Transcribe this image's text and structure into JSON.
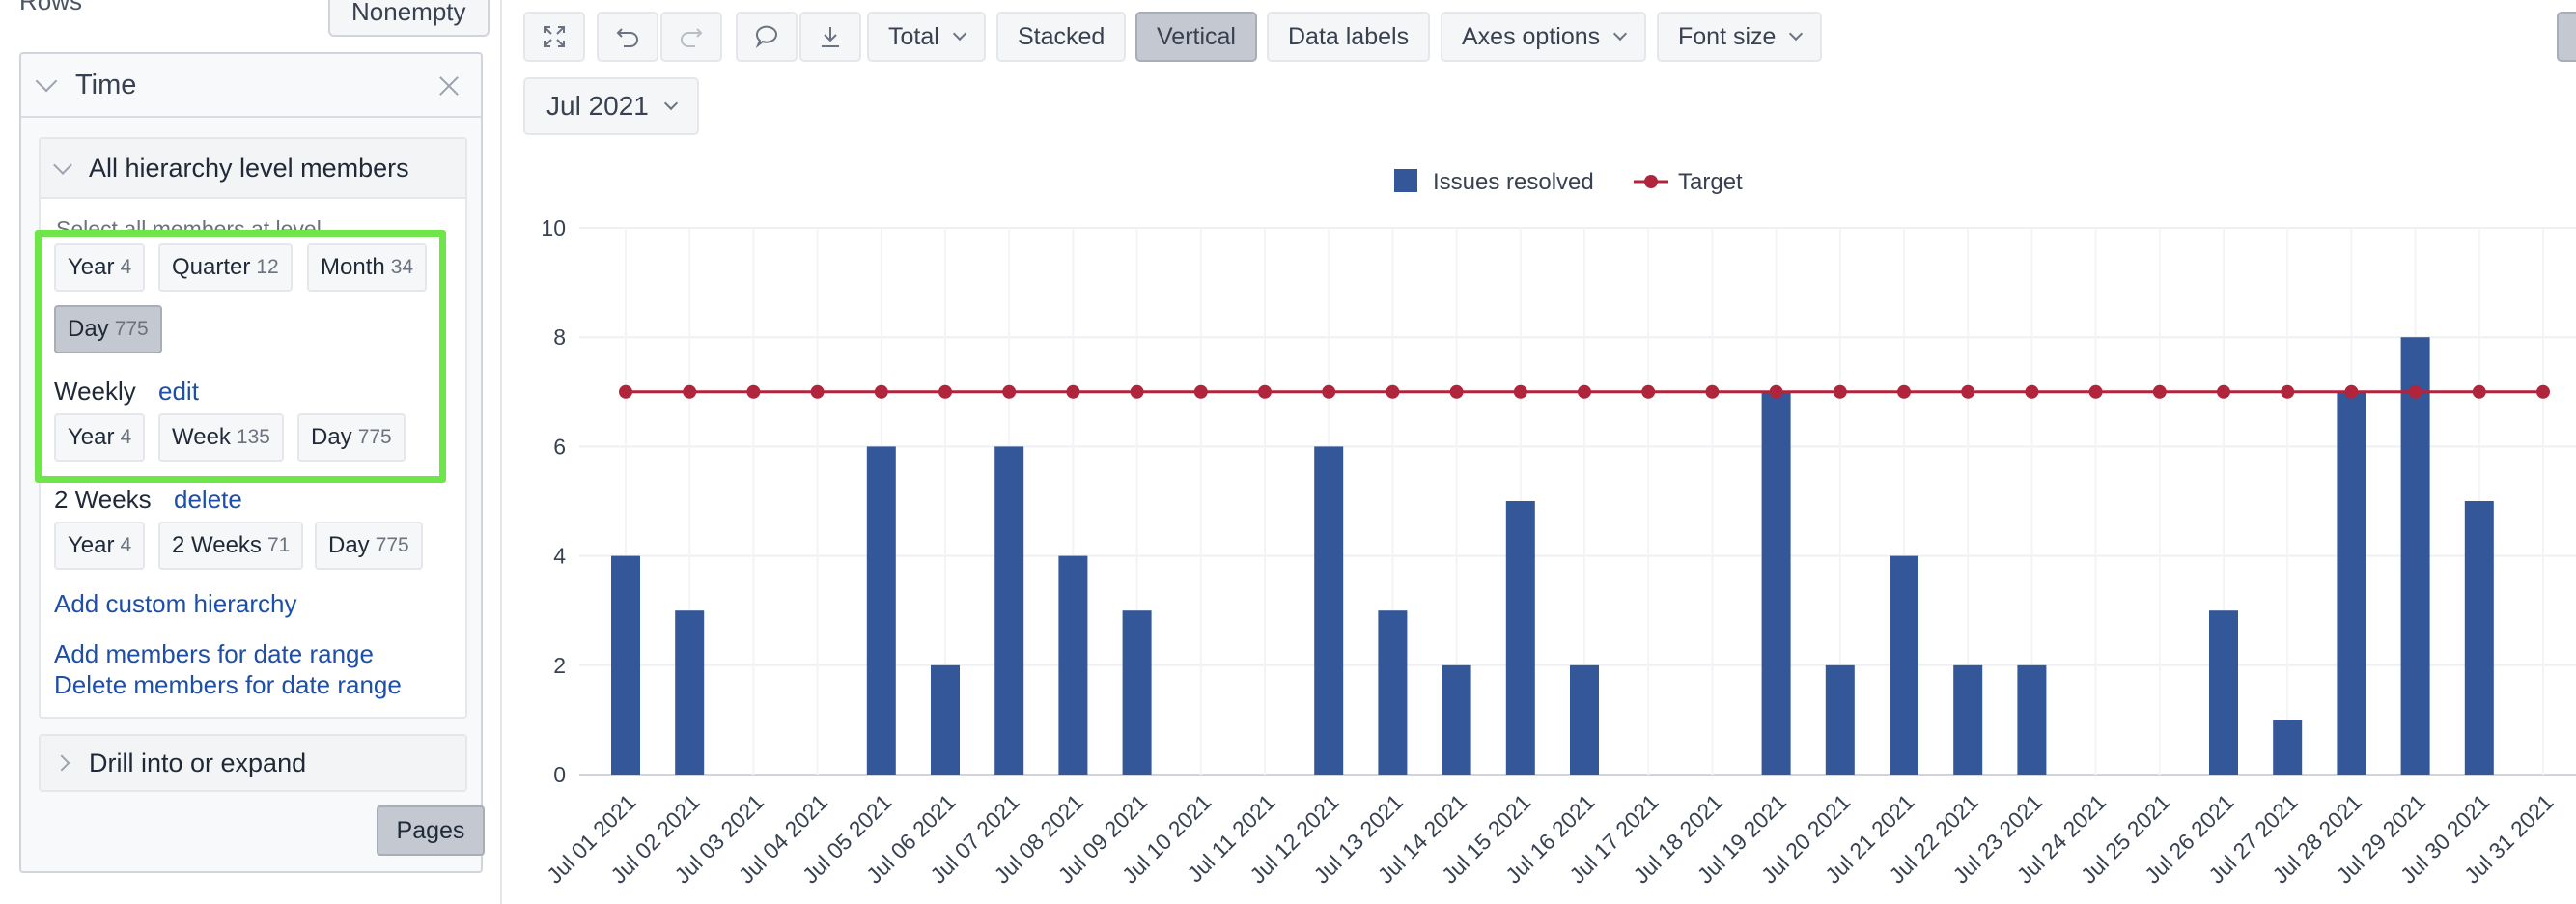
{
  "panel": {
    "rows_title": "Rows",
    "nonempty_label": "Nonempty",
    "time_title": "Time",
    "hierarchy_header": "All hierarchy level members",
    "select_label": "Select all members at level",
    "levels": [
      {
        "label": "Year",
        "count": "4"
      },
      {
        "label": "Quarter",
        "count": "12"
      },
      {
        "label": "Month",
        "count": "34"
      },
      {
        "label": "Day",
        "count": "775"
      }
    ],
    "weekly": {
      "name": "Weekly",
      "action": "edit",
      "levels": [
        {
          "label": "Year",
          "count": "4"
        },
        {
          "label": "Week",
          "count": "135"
        },
        {
          "label": "Day",
          "count": "775"
        }
      ]
    },
    "two_weeks": {
      "name": "2 Weeks",
      "action": "delete",
      "levels": [
        {
          "label": "Year",
          "count": "4"
        },
        {
          "label": "2 Weeks",
          "count": "71"
        },
        {
          "label": "Day",
          "count": "775"
        }
      ]
    },
    "add_custom_hierarchy": "Add custom hierarchy",
    "add_members_range": "Add members for date range",
    "delete_members_range": "Delete members for date range",
    "drill_label": "Drill into or expand",
    "pages_label": "Pages"
  },
  "toolbar": {
    "total_label": "Total",
    "stacked_label": "Stacked",
    "vertical_label": "Vertical",
    "data_labels_label": "Data labels",
    "axes_options_label": "Axes options",
    "font_size_label": "Font size",
    "date_selector": "Jul 2021",
    "icons": [
      "fullscreen-icon",
      "undo-icon",
      "redo-icon",
      "comment-icon",
      "download-icon"
    ]
  },
  "colors": {
    "bar": "#34579a",
    "target": "#b0243c",
    "highlight": "#6ee548",
    "link": "#1e4fa8"
  },
  "chart_data": {
    "type": "bar",
    "categories": [
      "Jul 01 2021",
      "Jul 02 2021",
      "Jul 03 2021",
      "Jul 04 2021",
      "Jul 05 2021",
      "Jul 06 2021",
      "Jul 07 2021",
      "Jul 08 2021",
      "Jul 09 2021",
      "Jul 10 2021",
      "Jul 11 2021",
      "Jul 12 2021",
      "Jul 13 2021",
      "Jul 14 2021",
      "Jul 15 2021",
      "Jul 16 2021",
      "Jul 17 2021",
      "Jul 18 2021",
      "Jul 19 2021",
      "Jul 20 2021",
      "Jul 21 2021",
      "Jul 22 2021",
      "Jul 23 2021",
      "Jul 24 2021",
      "Jul 25 2021",
      "Jul 26 2021",
      "Jul 27 2021",
      "Jul 28 2021",
      "Jul 29 2021",
      "Jul 30 2021",
      "Jul 31 2021"
    ],
    "series": [
      {
        "name": "Issues resolved",
        "type": "bar",
        "values": [
          4,
          3,
          0,
          0,
          6,
          2,
          6,
          4,
          3,
          0,
          0,
          6,
          3,
          2,
          5,
          2,
          0,
          0,
          7,
          2,
          4,
          2,
          2,
          0,
          0,
          3,
          1,
          7,
          8,
          5,
          0
        ]
      },
      {
        "name": "Target",
        "type": "line",
        "values": [
          7,
          7,
          7,
          7,
          7,
          7,
          7,
          7,
          7,
          7,
          7,
          7,
          7,
          7,
          7,
          7,
          7,
          7,
          7,
          7,
          7,
          7,
          7,
          7,
          7,
          7,
          7,
          7,
          7,
          7,
          7
        ]
      }
    ],
    "yticks": [
      0,
      2,
      4,
      6,
      8,
      10
    ],
    "ylim": [
      0,
      10
    ],
    "legend": "top-center",
    "grid": true
  }
}
